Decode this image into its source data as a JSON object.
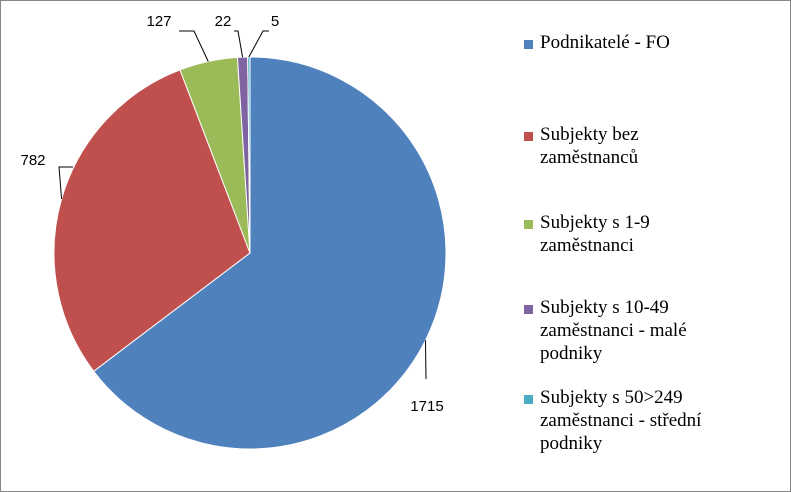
{
  "chart_data": {
    "type": "pie",
    "title": "",
    "categories": [
      "Podnikatelé - FO",
      "Subjekty bez zaměstnanců",
      "Subjekty s 1-9 zaměstnanci",
      "Subjekty s 10-49 zaměstnanci - malé podniky",
      "Subjekty s 50>249 zaměstnanci - střední podniky"
    ],
    "legend_lines": [
      "Podnikatelé - FO",
      "Subjekty bez\nzaměstnanců",
      "Subjekty s 1-9\nzaměstnanci",
      "Subjekty s 10-49\nzaměstnanci - malé\npodniky",
      "Subjekty s 50>249\nzaměstnanci - střední\npodniky"
    ],
    "values": [
      1715,
      782,
      127,
      22,
      5
    ],
    "data_labels": [
      "1715",
      "782",
      "127",
      "22",
      "5"
    ],
    "colors": [
      "#4F81BD",
      "#C0504D",
      "#9BBB59",
      "#8064A2",
      "#4BACC6"
    ],
    "legend_position": "right",
    "start_angle": "12 o'clock",
    "direction": "clockwise"
  }
}
